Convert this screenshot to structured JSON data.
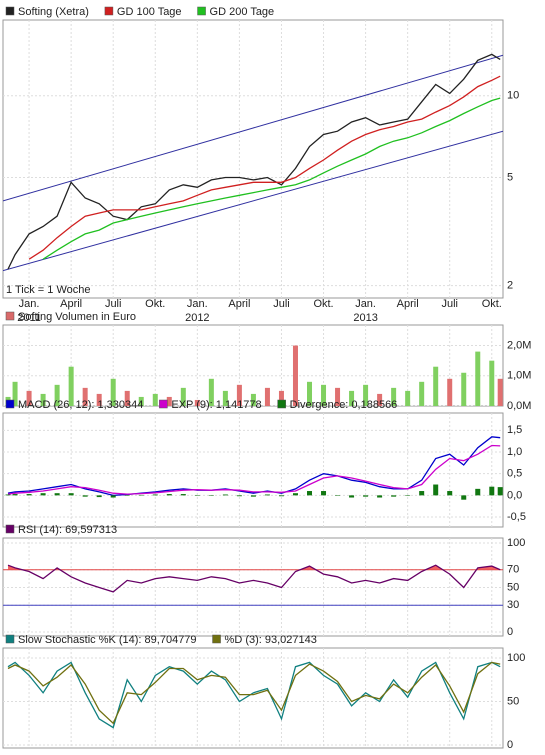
{
  "chart_data": [
    {
      "type": "line",
      "log_scale": true,
      "grid": true,
      "xlim": [
        -1.86,
        33.8
      ],
      "ylim": [
        1.8,
        19
      ],
      "yticks": [
        2,
        5,
        10
      ],
      "xticks": [
        {
          "value": 0,
          "label": "Jan."
        },
        {
          "value": 3,
          "label": "April"
        },
        {
          "value": 6,
          "label": "Juli"
        },
        {
          "value": 9,
          "label": "Okt."
        },
        {
          "value": 12,
          "label": "Jan."
        },
        {
          "value": 15,
          "label": "April"
        },
        {
          "value": 18,
          "label": "Juli"
        },
        {
          "value": 21,
          "label": "Okt."
        },
        {
          "value": 24,
          "label": "Jan."
        },
        {
          "value": 27,
          "label": "April"
        },
        {
          "value": 30,
          "label": "Juli"
        },
        {
          "value": 33,
          "label": "Okt."
        }
      ],
      "year_labels": [
        {
          "value": 0,
          "label": "2011"
        },
        {
          "value": 12,
          "label": "2012"
        },
        {
          "value": 24,
          "label": "2013"
        }
      ],
      "note": "1 Tick = 1 Woche",
      "x": [
        -1.5,
        -1,
        0,
        1,
        2,
        3,
        4,
        5,
        6,
        7,
        8,
        9,
        10,
        11,
        12,
        13,
        14,
        15,
        16,
        17,
        18,
        19,
        20,
        21,
        22,
        23,
        24,
        25,
        26,
        27,
        28,
        29,
        30,
        31,
        32,
        33,
        33.6
      ],
      "series": [
        {
          "name": "Softing (Xetra)",
          "color": "#222222",
          "values": [
            2.3,
            2.6,
            3.1,
            3.3,
            3.6,
            4.8,
            4.2,
            4.0,
            3.6,
            3.5,
            3.9,
            4.0,
            4.5,
            4.7,
            4.6,
            4.9,
            5.0,
            5.0,
            4.9,
            5.0,
            4.7,
            5.4,
            6.5,
            7.2,
            7.4,
            8.0,
            8.3,
            7.8,
            8.0,
            8.2,
            9.5,
            11.0,
            10.2,
            11.5,
            13.5,
            14.2,
            13.6
          ]
        },
        {
          "name": "GD 100 Tage",
          "color": "#d02020",
          "values": [
            null,
            null,
            2.5,
            2.7,
            3.0,
            3.3,
            3.6,
            3.7,
            3.8,
            3.8,
            3.8,
            3.9,
            4.0,
            4.1,
            4.3,
            4.5,
            4.6,
            4.7,
            4.8,
            4.8,
            4.8,
            5.0,
            5.4,
            5.8,
            6.3,
            6.8,
            7.2,
            7.5,
            7.7,
            8.0,
            8.2,
            8.7,
            9.2,
            9.9,
            10.8,
            11.4,
            11.8
          ]
        },
        {
          "name": "GD 200 Tage",
          "color": "#20c020",
          "values": [
            null,
            null,
            null,
            2.5,
            2.7,
            2.9,
            3.1,
            3.2,
            3.4,
            3.5,
            3.6,
            3.7,
            3.8,
            3.9,
            4.0,
            4.1,
            4.2,
            4.3,
            4.4,
            4.5,
            4.6,
            4.7,
            4.9,
            5.2,
            5.5,
            5.8,
            6.1,
            6.5,
            6.8,
            7.0,
            7.3,
            7.7,
            8.1,
            8.6,
            9.1,
            9.6,
            9.8
          ]
        }
      ],
      "trend_lines": [
        {
          "x": [
            -1.86,
            33.8
          ],
          "values": [
            4.1,
            14.1
          ],
          "color": "#3030a0"
        },
        {
          "x": [
            -1.86,
            33.8
          ],
          "values": [
            2.27,
            7.4
          ],
          "color": "#3030a0"
        }
      ]
    },
    {
      "type": "bar",
      "xlim": [
        -1.86,
        33.8
      ],
      "ylim": [
        0,
        2680000
      ],
      "yticks": [
        {
          "value": 0,
          "label": "0,0M"
        },
        {
          "value": 1000000,
          "label": "1,0M"
        },
        {
          "value": 2000000,
          "label": "2,0M"
        }
      ],
      "x": [
        -1.5,
        -1,
        0,
        1,
        2,
        3,
        4,
        5,
        6,
        7,
        8,
        9,
        10,
        11,
        12,
        13,
        14,
        15,
        16,
        17,
        18,
        19,
        20,
        21,
        22,
        23,
        24,
        25,
        26,
        27,
        28,
        29,
        30,
        31,
        32,
        33,
        33.6
      ],
      "series": [
        {
          "name": "Softing Volumen in Euro",
          "color": "#d96a6a",
          "colors": [
            "#80d060",
            "#80d060",
            "#e07070",
            "#80d060",
            "#80d060",
            "#80d060",
            "#e07070",
            "#e07070",
            "#80d060",
            "#e07070",
            "#80d060",
            "#80d060",
            "#e07070",
            "#80d060",
            "#e07070",
            "#80d060",
            "#80d060",
            "#e07070",
            "#80d060",
            "#e07070",
            "#e07070",
            "#e07070",
            "#80d060",
            "#80d060",
            "#e07070",
            "#80d060",
            "#80d060",
            "#e07070",
            "#80d060",
            "#80d060",
            "#80d060",
            "#80d060",
            "#e07070",
            "#80d060",
            "#80d060",
            "#80d060",
            "#e07070"
          ],
          "values": [
            300000,
            800000,
            500000,
            400000,
            700000,
            1300000,
            600000,
            400000,
            900000,
            500000,
            300000,
            400000,
            300000,
            600000,
            200000,
            900000,
            500000,
            700000,
            400000,
            600000,
            500000,
            2000000,
            800000,
            700000,
            600000,
            500000,
            700000,
            400000,
            600000,
            500000,
            800000,
            1300000,
            900000,
            1100000,
            1800000,
            1500000,
            900000
          ]
        }
      ]
    },
    {
      "type": "line",
      "xlim": [
        -1.86,
        33.8
      ],
      "ylim": [
        -0.73,
        1.9
      ],
      "yticks": [
        {
          "value": -0.5,
          "label": "-0,5"
        },
        {
          "value": 0,
          "label": "0,0"
        },
        {
          "value": 0.5,
          "label": "0,5"
        },
        {
          "value": 1,
          "label": "1,0"
        },
        {
          "value": 1.5,
          "label": "1,5"
        }
      ],
      "x": [
        -1.5,
        -1,
        0,
        1,
        2,
        3,
        4,
        5,
        6,
        7,
        8,
        9,
        10,
        11,
        12,
        13,
        14,
        15,
        16,
        17,
        18,
        19,
        20,
        21,
        22,
        23,
        24,
        25,
        26,
        27,
        28,
        29,
        30,
        31,
        32,
        33,
        33.6
      ],
      "series": [
        {
          "name": "MACD (26, 12): 1,330344",
          "color": "#0000cc",
          "values": [
            0.05,
            0.08,
            0.1,
            0.15,
            0.2,
            0.25,
            0.15,
            0.08,
            0.0,
            0.02,
            0.05,
            0.08,
            0.12,
            0.15,
            0.12,
            0.12,
            0.15,
            0.1,
            0.05,
            0.1,
            0.05,
            0.15,
            0.35,
            0.5,
            0.45,
            0.35,
            0.3,
            0.2,
            0.15,
            0.15,
            0.35,
            0.85,
            0.95,
            0.7,
            1.1,
            1.35,
            1.33
          ]
        },
        {
          "name": "EXP (9): 1,141778",
          "color": "#cc00cc",
          "values": [
            0.03,
            0.05,
            0.07,
            0.1,
            0.15,
            0.2,
            0.18,
            0.12,
            0.05,
            0.03,
            0.04,
            0.06,
            0.09,
            0.12,
            0.13,
            0.12,
            0.13,
            0.12,
            0.08,
            0.08,
            0.07,
            0.1,
            0.25,
            0.4,
            0.45,
            0.4,
            0.33,
            0.25,
            0.18,
            0.15,
            0.25,
            0.6,
            0.85,
            0.8,
            0.95,
            1.15,
            1.14
          ]
        },
        {
          "name": "Divergence: 0,188566",
          "color": "#117711",
          "type": "bar",
          "values": [
            0.02,
            0.03,
            0.03,
            0.05,
            0.05,
            0.05,
            -0.03,
            -0.04,
            -0.05,
            -0.01,
            0.01,
            0.02,
            0.03,
            0.03,
            -0.01,
            0,
            0.02,
            -0.02,
            -0.03,
            0.02,
            -0.02,
            0.05,
            0.1,
            0.1,
            0,
            -0.05,
            -0.03,
            -0.05,
            -0.03,
            0,
            0.1,
            0.25,
            0.1,
            -0.1,
            0.15,
            0.2,
            0.19
          ]
        }
      ]
    },
    {
      "type": "line",
      "xlim": [
        -1.86,
        33.8
      ],
      "ylim": [
        -4.5,
        105.6
      ],
      "yticks": [
        0,
        30,
        50,
        70,
        100
      ],
      "hlines": [
        {
          "value": 70,
          "color": "#e04040"
        },
        {
          "value": 30,
          "color": "#4040c0"
        }
      ],
      "x": [
        -1.5,
        -1,
        0,
        1,
        2,
        3,
        4,
        5,
        6,
        7,
        8,
        9,
        10,
        11,
        12,
        13,
        14,
        15,
        16,
        17,
        18,
        19,
        20,
        21,
        22,
        23,
        24,
        25,
        26,
        27,
        28,
        29,
        30,
        31,
        32,
        33,
        33.6
      ],
      "series": [
        {
          "name": "RSI (14): 69,597313",
          "color": "#660066",
          "fill_above": 70,
          "fill_color": "#f06060",
          "values": [
            75,
            72,
            68,
            60,
            72,
            62,
            55,
            50,
            45,
            58,
            55,
            60,
            62,
            60,
            58,
            62,
            60,
            55,
            58,
            55,
            50,
            68,
            74,
            65,
            62,
            55,
            58,
            55,
            60,
            58,
            68,
            75,
            65,
            50,
            72,
            74,
            70
          ]
        }
      ]
    },
    {
      "type": "line",
      "xlim": [
        -1.86,
        33.8
      ],
      "ylim": [
        -3.4,
        111.5
      ],
      "yticks": [
        0,
        50,
        100
      ],
      "x": [
        -1.5,
        -1,
        0,
        1,
        2,
        3,
        4,
        5,
        6,
        7,
        8,
        9,
        10,
        11,
        12,
        13,
        14,
        15,
        16,
        17,
        18,
        19,
        20,
        21,
        22,
        23,
        24,
        25,
        26,
        27,
        28,
        29,
        30,
        31,
        32,
        33,
        33.6
      ],
      "series": [
        {
          "name": "Slow Stochastic %K (14): 89,704779",
          "color": "#108080",
          "values": [
            90,
            95,
            80,
            60,
            85,
            95,
            60,
            30,
            20,
            75,
            50,
            80,
            90,
            85,
            70,
            85,
            75,
            50,
            60,
            65,
            30,
            90,
            95,
            80,
            70,
            45,
            60,
            50,
            75,
            55,
            85,
            95,
            60,
            30,
            90,
            95,
            90
          ]
        },
        {
          "name": "%D (3): 93,027143",
          "color": "#707010",
          "values": [
            88,
            92,
            85,
            68,
            78,
            92,
            70,
            40,
            25,
            60,
            58,
            72,
            88,
            88,
            75,
            80,
            78,
            58,
            58,
            63,
            40,
            80,
            93,
            85,
            73,
            50,
            57,
            53,
            70,
            60,
            78,
            92,
            68,
            38,
            82,
            95,
            93
          ]
        }
      ]
    }
  ]
}
